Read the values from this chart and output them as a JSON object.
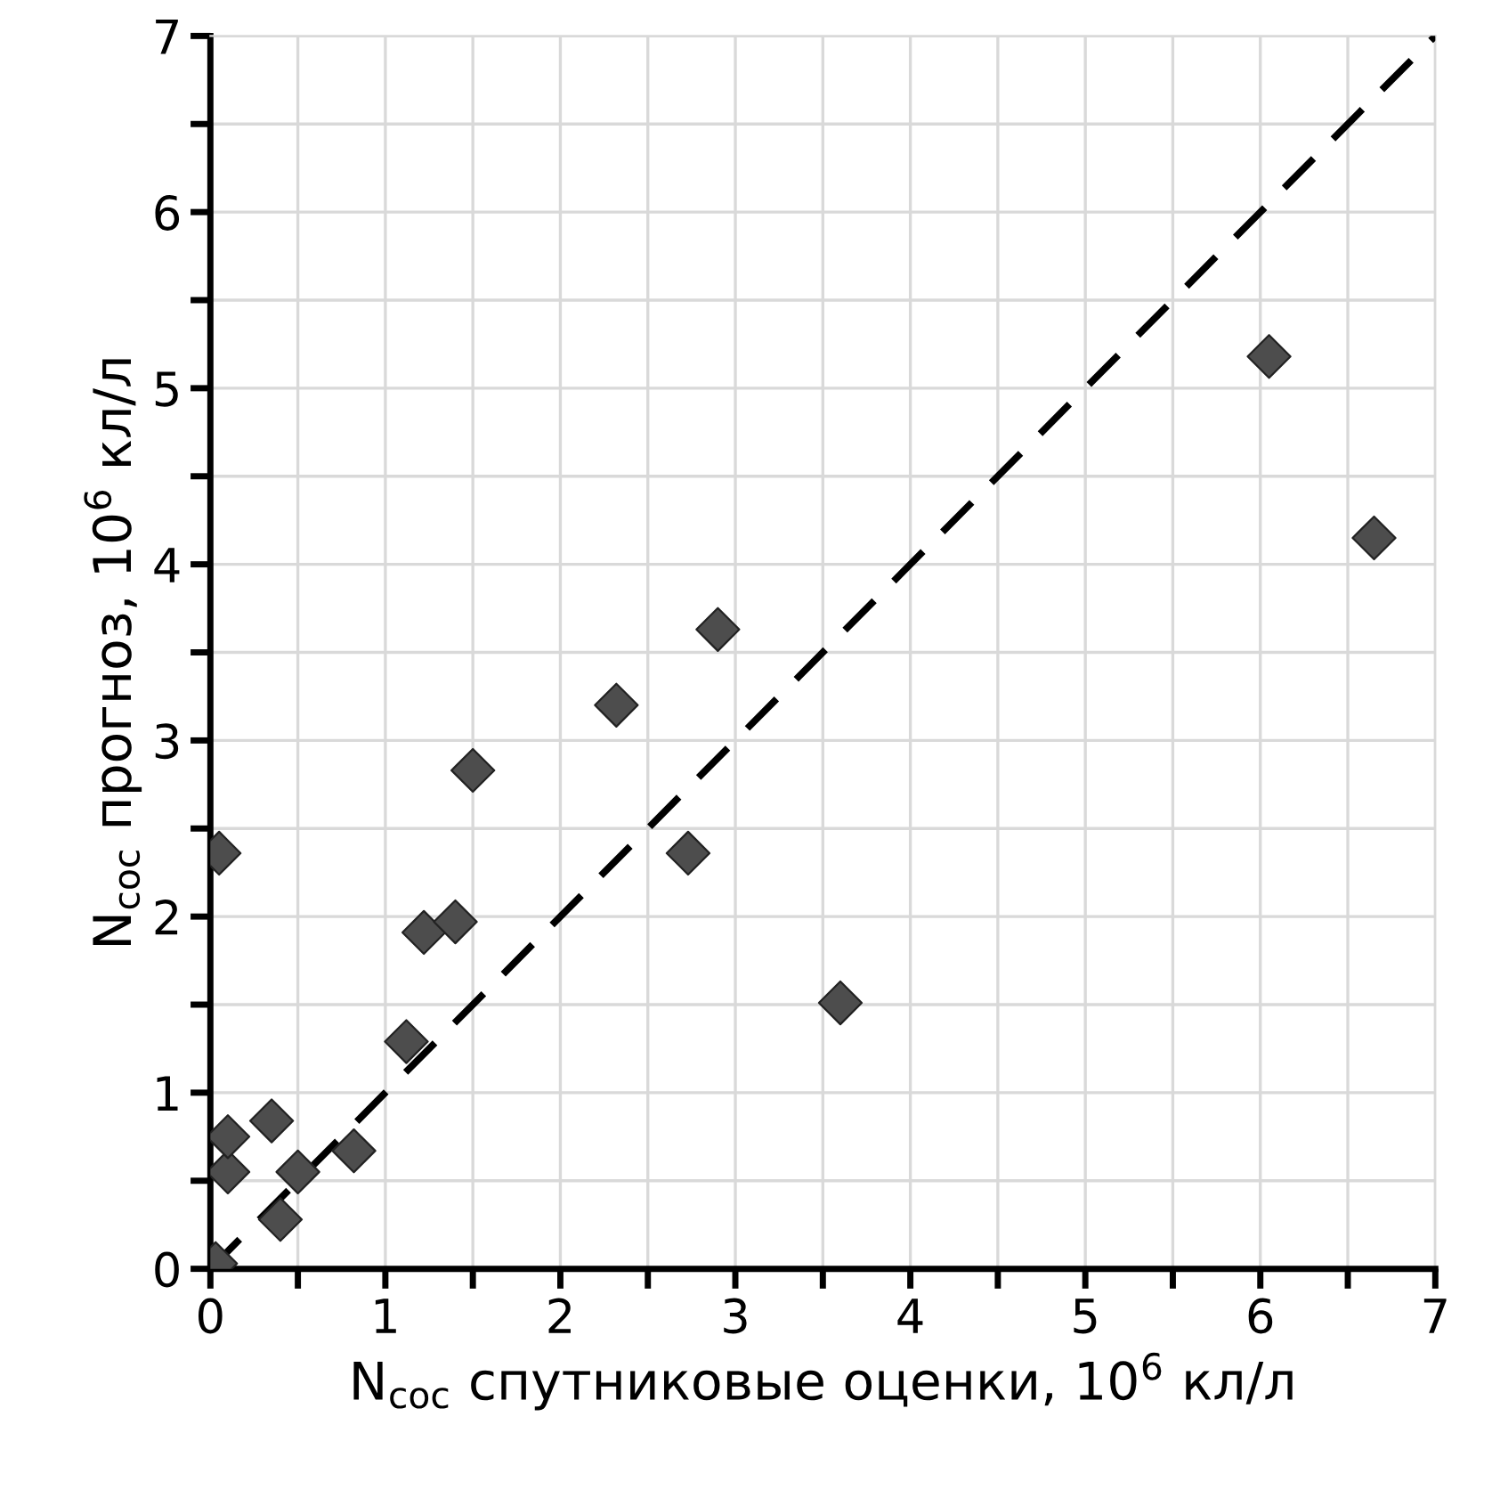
{
  "chart_data": {
    "type": "scatter",
    "xlabel": "N$_{coc}$ спутниковые оценки, 10$^{6}$ кл/л",
    "ylabel": "N$_{coc}$ прогноз, 10$^{6}$ кл/л",
    "xlim": [
      0,
      7
    ],
    "ylim": [
      0,
      7
    ],
    "xticks": [
      0,
      {
        "value": 0.5,
        "label": null
      },
      1,
      {
        "value": 1.5,
        "label": null
      },
      2,
      {
        "value": 2.5,
        "label": null
      },
      3,
      {
        "value": 3.5,
        "label": null
      },
      4,
      {
        "value": 4.5,
        "label": null
      },
      5,
      {
        "value": 5.5,
        "label": null
      },
      6,
      {
        "value": 6.5,
        "label": null
      },
      7
    ],
    "yticks": [
      0,
      {
        "value": 0.5,
        "label": null
      },
      1,
      {
        "value": 1.5,
        "label": null
      },
      2,
      {
        "value": 2.5,
        "label": null
      },
      3,
      {
        "value": 3.5,
        "label": null
      },
      4,
      {
        "value": 4.5,
        "label": null
      },
      5,
      {
        "value": 5.5,
        "label": null
      },
      6,
      {
        "value": 6.5,
        "label": null
      },
      7
    ],
    "grid": true,
    "series": [
      {
        "marker": "diamond",
        "color": "#4d4d4d",
        "x": [
          0.03,
          0.05,
          0.1,
          0.1,
          0.35,
          0.4,
          0.5,
          0.82,
          1.12,
          1.22,
          1.4,
          1.5,
          2.32,
          2.73,
          2.9,
          3.6,
          6.05,
          6.65
        ],
        "values": [
          0.03,
          2.36,
          0.55,
          0.75,
          0.84,
          0.28,
          0.55,
          0.67,
          1.29,
          1.91,
          1.97,
          2.83,
          3.2,
          2.36,
          3.63,
          1.51,
          5.18,
          4.15
        ]
      },
      {
        "type": "line",
        "color": "#000000",
        "line_style": "dashed",
        "x": [
          0,
          7
        ],
        "values": [
          0,
          7
        ]
      }
    ]
  }
}
